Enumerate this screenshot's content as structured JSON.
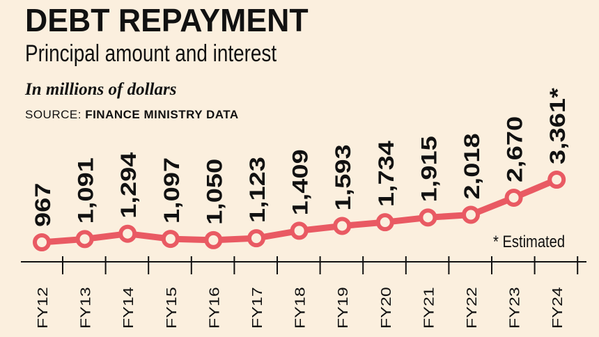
{
  "header": {
    "title": "DEBT REPAYMENT",
    "subtitle": "Principal amount and interest",
    "units": "In millions of dollars",
    "source_label": "SOURCE:",
    "source_name": "FINANCE MINISTRY DATA"
  },
  "note": "* Estimated",
  "colors": {
    "line": "#e95a63",
    "marker_fill": "#fbefde",
    "axis": "#111111",
    "background": "#fbefde"
  },
  "chart_data": {
    "type": "line",
    "title": "DEBT REPAYMENT",
    "subtitle": "Principal amount and interest",
    "categories": [
      "FY12",
      "FY13",
      "FY14",
      "FY15",
      "FY16",
      "FY17",
      "FY18",
      "FY19",
      "FY20",
      "FY21",
      "FY22",
      "FY23",
      "FY24"
    ],
    "values": [
      967,
      1091,
      1294,
      1097,
      1050,
      1123,
      1409,
      1593,
      1734,
      1915,
      2018,
      2670,
      3361
    ],
    "labels": [
      "967",
      "1,091",
      "1,294",
      "1,097",
      "1,050",
      "1,123",
      "1,409",
      "1,593",
      "1,734",
      "1,915",
      "2,018",
      "2,670",
      "3,361*"
    ],
    "ylabel": "In millions of dollars",
    "xlabel": "",
    "ylim": [
      967,
      3361
    ],
    "grid": false,
    "legend": "none"
  }
}
